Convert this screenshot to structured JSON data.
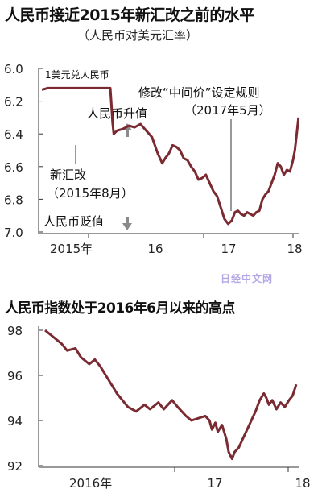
{
  "title": "人民币接近2015年新汇改之前的水平",
  "subtitle": "（人民币对美元汇率）",
  "title2": "人民币指数处于2016年6月以来的高点",
  "watermark": "日经中文网",
  "colors": {
    "line": "#7a2a31",
    "grid": "#333333",
    "arrow": "#8a8a8a"
  },
  "chart_data": [
    {
      "type": "line",
      "title": "人民币接近2015年新汇改之前的水平",
      "subtitle": "（人民币对美元汇率）",
      "ylabel": "1美元兑人民币",
      "ylim": [
        6.0,
        7.0
      ],
      "y_inverted": true,
      "yticks": [
        "6.0",
        "6.2",
        "6.4",
        "6.6",
        "6.8",
        "7.0"
      ],
      "xticks": [
        "2015年",
        "16",
        "17",
        "18"
      ],
      "annotations": {
        "reform": "新汇改",
        "reform_date": "（2015年8月）",
        "midpoint": "修改“中间价”设定规则",
        "midpoint_date": "（2017年5月）",
        "appreciation": "人民币升值",
        "depreciation": "人民币贬值"
      },
      "series": [
        {
          "values": [
            [
              2015.0,
              6.13
            ],
            [
              2015.05,
              6.12
            ],
            [
              2015.1,
              6.12
            ],
            [
              2015.2,
              6.12
            ],
            [
              2015.3,
              6.12
            ],
            [
              2015.4,
              6.12
            ],
            [
              2015.5,
              6.12
            ],
            [
              2015.59,
              6.12
            ],
            [
              2015.6,
              6.22
            ],
            [
              2015.61,
              6.33
            ],
            [
              2015.62,
              6.4
            ],
            [
              2015.65,
              6.38
            ],
            [
              2015.7,
              6.37
            ],
            [
              2015.75,
              6.35
            ],
            [
              2015.8,
              6.36
            ],
            [
              2015.85,
              6.34
            ],
            [
              2015.9,
              6.38
            ],
            [
              2015.95,
              6.42
            ],
            [
              2016.0,
              6.52
            ],
            [
              2016.03,
              6.55
            ],
            [
              2016.06,
              6.58
            ],
            [
              2016.1,
              6.55
            ],
            [
              2016.15,
              6.52
            ],
            [
              2016.2,
              6.47
            ],
            [
              2016.25,
              6.48
            ],
            [
              2016.3,
              6.5
            ],
            [
              2016.35,
              6.55
            ],
            [
              2016.4,
              6.56
            ],
            [
              2016.45,
              6.6
            ],
            [
              2016.5,
              6.63
            ],
            [
              2016.55,
              6.68
            ],
            [
              2016.6,
              6.67
            ],
            [
              2016.65,
              6.65
            ],
            [
              2016.7,
              6.7
            ],
            [
              2016.75,
              6.75
            ],
            [
              2016.8,
              6.78
            ],
            [
              2016.85,
              6.85
            ],
            [
              2016.9,
              6.92
            ],
            [
              2016.95,
              6.95
            ],
            [
              2017.0,
              6.93
            ],
            [
              2017.05,
              6.88
            ],
            [
              2017.1,
              6.87
            ],
            [
              2017.15,
              6.89
            ],
            [
              2017.2,
              6.9
            ],
            [
              2017.25,
              6.88
            ],
            [
              2017.3,
              6.89
            ],
            [
              2017.35,
              6.9
            ],
            [
              2017.4,
              6.88
            ],
            [
              2017.45,
              6.87
            ],
            [
              2017.5,
              6.8
            ],
            [
              2017.55,
              6.77
            ],
            [
              2017.6,
              6.75
            ],
            [
              2017.65,
              6.7
            ],
            [
              2017.7,
              6.65
            ],
            [
              2017.75,
              6.58
            ],
            [
              2017.8,
              6.6
            ],
            [
              2017.85,
              6.65
            ],
            [
              2017.9,
              6.62
            ],
            [
              2017.95,
              6.63
            ],
            [
              2018.0,
              6.56
            ],
            [
              2018.03,
              6.5
            ],
            [
              2018.06,
              6.4
            ],
            [
              2018.09,
              6.3
            ]
          ]
        }
      ]
    },
    {
      "type": "line",
      "title": "人民币指数处于2016年6月以来的高点",
      "ylim": [
        92,
        98
      ],
      "yticks": [
        "98",
        "96",
        "94",
        "92"
      ],
      "xticks": [
        "2016年",
        "17",
        "18"
      ],
      "series": [
        {
          "values": [
            [
              2016.42,
              98.0
            ],
            [
              2016.45,
              97.7
            ],
            [
              2016.48,
              97.4
            ],
            [
              2016.5,
              97.1
            ],
            [
              2016.53,
              97.2
            ],
            [
              2016.55,
              96.8
            ],
            [
              2016.58,
              96.5
            ],
            [
              2016.6,
              96.7
            ],
            [
              2016.62,
              96.4
            ],
            [
              2016.65,
              95.8
            ],
            [
              2016.68,
              95.2
            ],
            [
              2016.7,
              94.9
            ],
            [
              2016.72,
              94.6
            ],
            [
              2016.75,
              94.4
            ],
            [
              2016.78,
              94.7
            ],
            [
              2016.8,
              94.5
            ],
            [
              2016.83,
              94.8
            ],
            [
              2016.85,
              94.5
            ],
            [
              2016.88,
              94.9
            ],
            [
              2016.9,
              94.6
            ],
            [
              2016.93,
              94.2
            ],
            [
              2016.95,
              94.0
            ],
            [
              2017.0,
              94.2
            ],
            [
              2017.05,
              94.0
            ],
            [
              2017.08,
              93.6
            ],
            [
              2017.12,
              93.9
            ],
            [
              2017.15,
              93.5
            ],
            [
              2017.2,
              93.8
            ],
            [
              2017.25,
              93.2
            ],
            [
              2017.28,
              92.6
            ],
            [
              2017.32,
              92.3
            ],
            [
              2017.35,
              92.6
            ],
            [
              2017.4,
              92.8
            ],
            [
              2017.45,
              93.2
            ],
            [
              2017.5,
              93.6
            ],
            [
              2017.55,
              94.0
            ],
            [
              2017.6,
              94.4
            ],
            [
              2017.65,
              94.9
            ],
            [
              2017.7,
              95.2
            ],
            [
              2017.73,
              95.0
            ],
            [
              2017.76,
              94.7
            ],
            [
              2017.8,
              94.9
            ],
            [
              2017.85,
              94.5
            ],
            [
              2017.9,
              94.8
            ],
            [
              2017.95,
              94.6
            ],
            [
              2018.0,
              94.9
            ],
            [
              2018.03,
              95.1
            ],
            [
              2018.06,
              95.6
            ]
          ]
        }
      ]
    }
  ]
}
